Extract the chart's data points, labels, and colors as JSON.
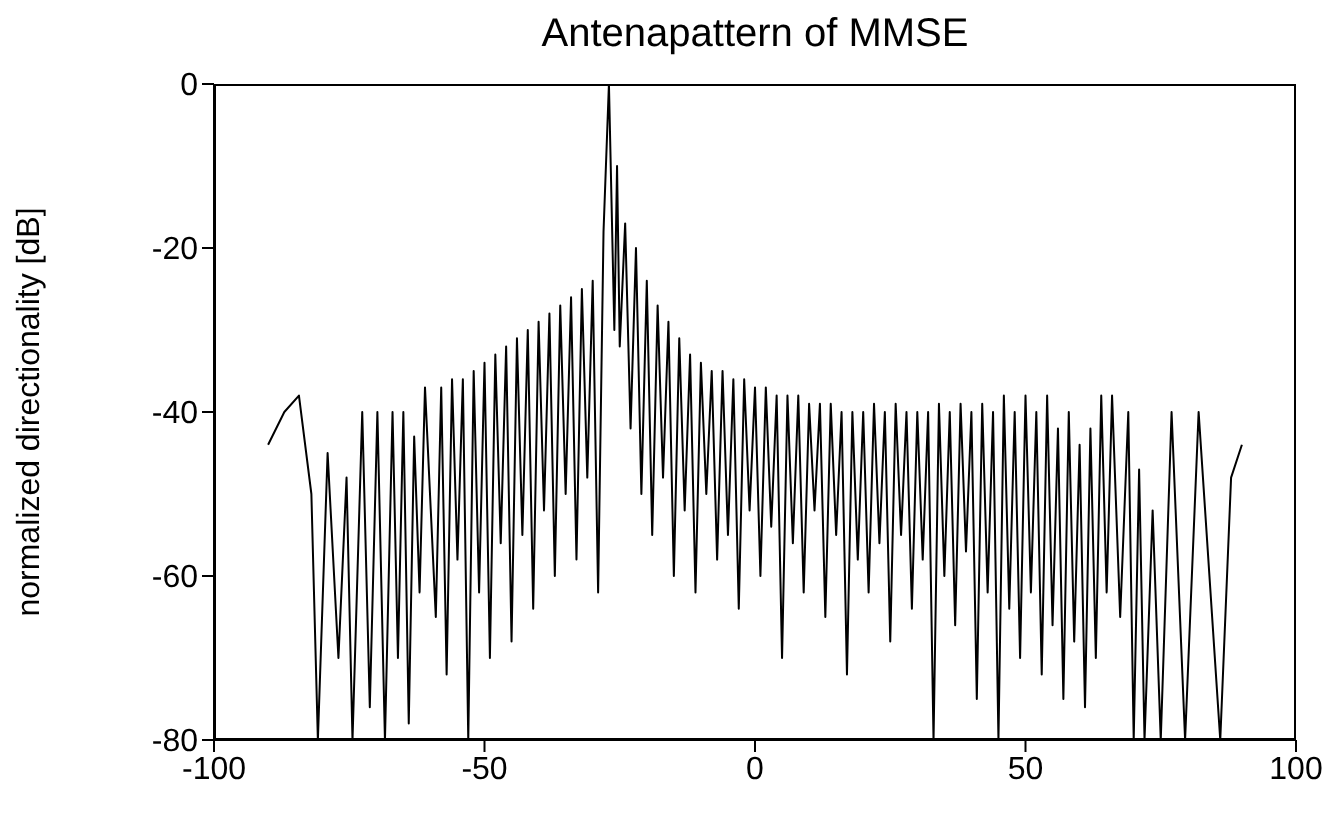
{
  "chart_data": {
    "type": "line",
    "title": "Antenapattern of MMSE",
    "ylabel": "normalized directionality [dB]",
    "xlim": [
      -100,
      100
    ],
    "xticks": [
      -100,
      -50,
      0,
      50,
      100
    ],
    "ylim": [
      -80,
      0
    ],
    "yticks": [
      -80,
      -60,
      -40,
      -20,
      0
    ],
    "marker": "none",
    "line_style": "solid",
    "series": [
      {
        "color": "#000000",
        "x": [
          -90,
          -87,
          -84.3,
          -82,
          -80.8,
          -79,
          -77,
          -75.5,
          -74.4,
          -72.6,
          -71.2,
          -69.8,
          -68.4,
          -67,
          -66,
          -65,
          -64,
          -63,
          -62,
          -61,
          -59,
          -58,
          -57,
          -56,
          -55,
          -54,
          -53,
          -52,
          -51,
          -50,
          -49,
          -48,
          -47,
          -46,
          -45,
          -44,
          -43,
          -42,
          -41,
          -40,
          -39,
          -38,
          -37,
          -36,
          -35,
          -34,
          -33,
          -32,
          -31,
          -30,
          -29,
          -28,
          -27,
          -26,
          -25.5,
          -25,
          -24,
          -23,
          -22,
          -21,
          -20,
          -19,
          -18,
          -17,
          -16,
          -15,
          -14,
          -13,
          -12,
          -11,
          -10,
          -9,
          -8,
          -7,
          -6,
          -5,
          -4,
          -3,
          -2,
          -1,
          0,
          1,
          2,
          3,
          4,
          5,
          6,
          7,
          8,
          9,
          10,
          11,
          12,
          13,
          14,
          15,
          16,
          17,
          18,
          19,
          20,
          21,
          22,
          23,
          24,
          25,
          26,
          27,
          28,
          29,
          30,
          31,
          32,
          33,
          34,
          35,
          36,
          37,
          38,
          39,
          40,
          41,
          42,
          43,
          44,
          45,
          46,
          47,
          48,
          49,
          50,
          51,
          52,
          53,
          54,
          55,
          56,
          57,
          58,
          59,
          60,
          61,
          62,
          63,
          64,
          65,
          66,
          67.5,
          69,
          70,
          71,
          72,
          73.5,
          75,
          77,
          79.5,
          82,
          86,
          88,
          90
        ],
        "values": [
          -44,
          -40,
          -38,
          -50,
          -80,
          -45,
          -70,
          -48,
          -80,
          -40,
          -76,
          -40,
          -80,
          -40,
          -70,
          -40,
          -78,
          -43,
          -62,
          -37,
          -65,
          -37,
          -72,
          -36,
          -58,
          -36,
          -80,
          -35,
          -62,
          -34,
          -70,
          -33,
          -56,
          -32,
          -68,
          -31,
          -55,
          -30,
          -64,
          -29,
          -52,
          -28,
          -60,
          -27,
          -50,
          -26,
          -58,
          -25,
          -48,
          -24,
          -62,
          -18,
          0,
          -30,
          -10,
          -32,
          -17,
          -42,
          -20,
          -50,
          -24,
          -55,
          -27,
          -48,
          -29,
          -60,
          -31,
          -52,
          -33,
          -62,
          -34,
          -50,
          -35,
          -58,
          -35,
          -55,
          -36,
          -64,
          -36,
          -52,
          -37,
          -60,
          -37,
          -54,
          -38,
          -70,
          -38,
          -56,
          -38,
          -62,
          -39,
          -52,
          -39,
          -65,
          -39,
          -55,
          -40,
          -72,
          -40,
          -58,
          -40,
          -62,
          -39,
          -56,
          -40,
          -68,
          -39,
          -55,
          -40,
          -64,
          -40,
          -58,
          -40,
          -80,
          -39,
          -60,
          -40,
          -66,
          -39,
          -57,
          -40,
          -75,
          -39,
          -62,
          -40,
          -80,
          -38,
          -64,
          -40,
          -70,
          -38,
          -62,
          -40,
          -72,
          -38,
          -66,
          -42,
          -75,
          -40,
          -68,
          -44,
          -76,
          -42,
          -70,
          -38,
          -62,
          -38,
          -65,
          -40,
          -80,
          -47,
          -80,
          -52,
          -80,
          -40,
          -80,
          -40,
          -80,
          -48,
          -44
        ]
      }
    ]
  }
}
